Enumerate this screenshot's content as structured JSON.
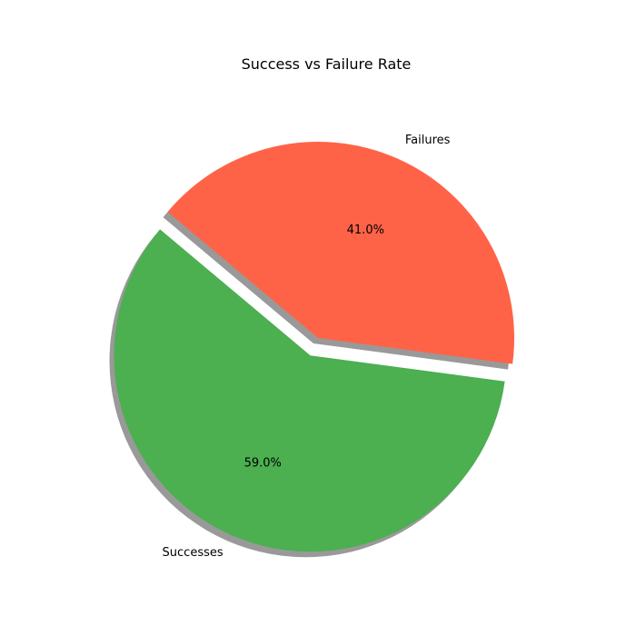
{
  "chart_data": {
    "type": "pie",
    "title": "Success vs Failure Rate",
    "slices": [
      {
        "label": "Successes",
        "value": 59.0,
        "pct_label": "59.0%",
        "color": "#4caf50",
        "explode": true
      },
      {
        "label": "Failures",
        "value": 41.0,
        "pct_label": "41.0%",
        "color": "#ff6347",
        "explode": false
      }
    ],
    "start_angle_deg": 140,
    "shadow": true,
    "legend": "none"
  }
}
